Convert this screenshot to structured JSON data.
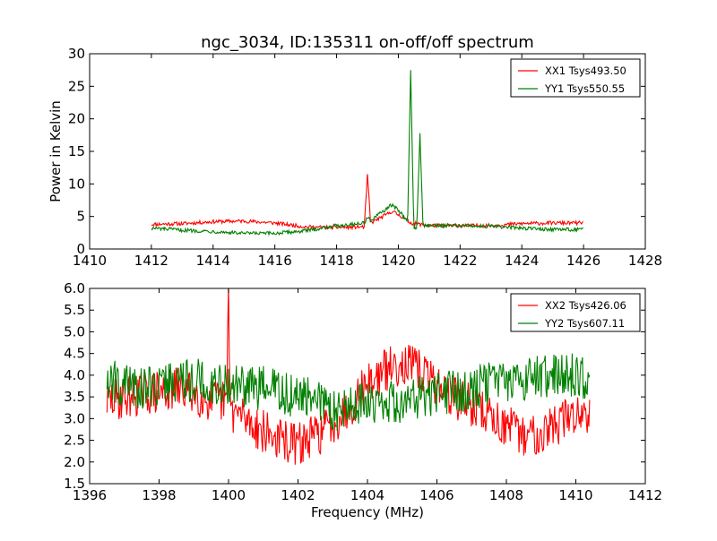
{
  "figure": {
    "title": "ngc_3034, ID:135311 on-off/off spectrum"
  },
  "chart_data": [
    {
      "type": "line",
      "title": "ngc_3034, ID:135311 on-off/off spectrum",
      "xlabel": "",
      "ylabel": "Power in Kelvin",
      "xlim": [
        1410,
        1428
      ],
      "ylim": [
        0,
        30
      ],
      "xticks": [
        1410,
        1412,
        1414,
        1416,
        1418,
        1420,
        1422,
        1424,
        1426,
        1428
      ],
      "yticks": [
        0,
        5,
        10,
        15,
        20,
        25,
        30
      ],
      "xtick_labels": [
        "1410",
        "1412",
        "1414",
        "1416",
        "1418",
        "1420",
        "1422",
        "1424",
        "1426",
        "1428"
      ],
      "ytick_labels": [
        "0",
        "5",
        "10",
        "15",
        "20",
        "25",
        "30"
      ],
      "grid": false,
      "legend_position": "top-right",
      "series": [
        {
          "name": "XX1 Tsys493.50",
          "color": "#ff0000",
          "x": [
            1412.0,
            1413.0,
            1414.0,
            1415.0,
            1416.0,
            1417.0,
            1418.0,
            1418.9,
            1419.0,
            1419.1,
            1419.5,
            1419.8,
            1420.1,
            1420.4,
            1420.7,
            1421.0,
            1422.0,
            1423.0,
            1424.0,
            1425.0,
            1426.0
          ],
          "y": [
            3.8,
            3.9,
            4.2,
            4.3,
            4.0,
            3.4,
            3.3,
            3.4,
            11.5,
            4.0,
            5.0,
            5.8,
            5.0,
            4.0,
            3.8,
            3.6,
            3.6,
            3.6,
            3.9,
            4.0,
            4.0
          ]
        },
        {
          "name": "YY1 Tsys550.55",
          "color": "#008000",
          "x": [
            1412.0,
            1413.0,
            1414.0,
            1415.0,
            1416.0,
            1417.0,
            1418.0,
            1418.9,
            1419.0,
            1419.1,
            1419.5,
            1419.8,
            1420.1,
            1420.3,
            1420.4,
            1420.5,
            1420.6,
            1420.7,
            1420.8,
            1421.0,
            1422.0,
            1423.0,
            1424.0,
            1425.0,
            1426.0
          ],
          "y": [
            3.2,
            2.9,
            2.7,
            2.4,
            2.4,
            2.8,
            3.6,
            4.0,
            5.0,
            4.3,
            5.8,
            6.8,
            5.5,
            4.0,
            27.5,
            3.0,
            3.5,
            17.8,
            3.5,
            3.6,
            3.6,
            3.5,
            3.2,
            3.0,
            3.0
          ]
        }
      ]
    },
    {
      "type": "line",
      "title": "",
      "xlabel": "Frequency (MHz)",
      "ylabel": "",
      "xlim": [
        1396,
        1412
      ],
      "ylim": [
        1.5,
        6.0
      ],
      "xticks": [
        1396,
        1398,
        1400,
        1402,
        1404,
        1406,
        1408,
        1410,
        1412
      ],
      "yticks": [
        1.5,
        2.0,
        2.5,
        3.0,
        3.5,
        4.0,
        4.5,
        5.0,
        5.5,
        6.0
      ],
      "xtick_labels": [
        "1396",
        "1398",
        "1400",
        "1402",
        "1404",
        "1406",
        "1408",
        "1410",
        "1412"
      ],
      "ytick_labels": [
        "1.5",
        "2.0",
        "2.5",
        "3.0",
        "3.5",
        "4.0",
        "4.5",
        "5.0",
        "5.5",
        "6.0"
      ],
      "grid": false,
      "legend_position": "top-right",
      "series": [
        {
          "name": "XX2 Tsys426.06",
          "color": "#ff0000",
          "x": [
            1396.5,
            1397.0,
            1397.5,
            1398.0,
            1398.5,
            1399.0,
            1399.5,
            1399.95,
            1400.0,
            1400.05,
            1400.5,
            1401.0,
            1401.5,
            1402.0,
            1402.5,
            1403.0,
            1403.5,
            1404.0,
            1404.5,
            1405.0,
            1405.5,
            1406.0,
            1406.5,
            1407.0,
            1407.5,
            1408.0,
            1408.5,
            1409.0,
            1409.5,
            1410.0,
            1410.4
          ],
          "y": [
            3.4,
            3.5,
            3.6,
            3.6,
            3.7,
            3.6,
            3.4,
            3.4,
            6.0,
            3.2,
            3.0,
            2.7,
            2.5,
            2.4,
            2.6,
            2.9,
            3.3,
            3.8,
            4.1,
            4.3,
            4.1,
            3.8,
            3.5,
            3.3,
            3.1,
            2.8,
            2.6,
            2.7,
            2.9,
            3.1,
            3.2
          ]
        },
        {
          "name": "YY2 Tsys607.11",
          "color": "#008000",
          "x": [
            1396.5,
            1397.0,
            1397.5,
            1398.0,
            1398.5,
            1399.0,
            1399.5,
            1400.0,
            1400.5,
            1401.0,
            1401.5,
            1402.0,
            1402.5,
            1403.0,
            1403.5,
            1404.0,
            1404.5,
            1405.0,
            1405.5,
            1406.0,
            1406.5,
            1407.0,
            1407.5,
            1408.0,
            1408.5,
            1409.0,
            1409.5,
            1410.0,
            1410.4
          ],
          "y": [
            3.9,
            3.8,
            3.7,
            3.8,
            3.9,
            3.9,
            3.8,
            3.8,
            3.7,
            3.7,
            3.6,
            3.5,
            3.4,
            3.2,
            3.3,
            3.4,
            3.4,
            3.4,
            3.5,
            3.6,
            3.6,
            3.7,
            3.8,
            3.9,
            3.9,
            4.0,
            4.0,
            4.0,
            3.9
          ]
        }
      ]
    }
  ]
}
